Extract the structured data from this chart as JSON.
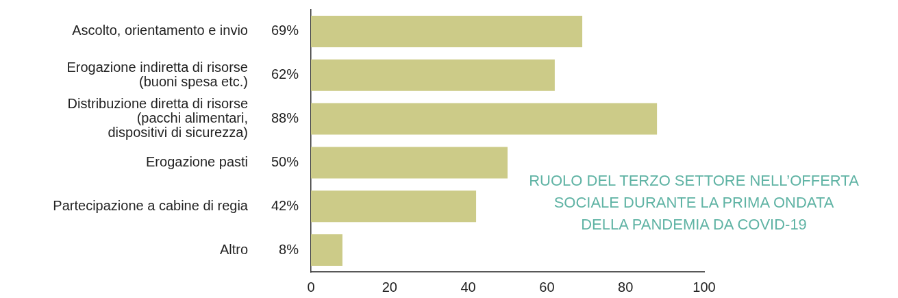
{
  "chart_data": {
    "type": "bar",
    "orientation": "horizontal",
    "title": "RUOLO DEL TERZO SETTORE NELL’OFFERTA\nSOCIALE DURANTE LA PRIMA ONDATA\nDELLA PANDEMIA DA COVID-19",
    "categories": [
      "Ascolto, orientamento e invio",
      "Erogazione indiretta di risorse\n(buoni spesa etc.)",
      "Distribuzione diretta di risorse\n(pacchi alimentari,\ndispositivi di sicurezza)",
      "Erogazione pasti",
      "Partecipazione a cabine di regia",
      "Altro"
    ],
    "values": [
      69,
      62,
      88,
      50,
      42,
      8
    ],
    "value_labels": [
      "69%",
      "62%",
      "88%",
      "50%",
      "42%",
      "8%"
    ],
    "color": "#cccb88",
    "xlim": [
      0,
      100
    ],
    "xticks": [
      0,
      20,
      40,
      60,
      80,
      100
    ],
    "grid": false,
    "legend": false
  }
}
